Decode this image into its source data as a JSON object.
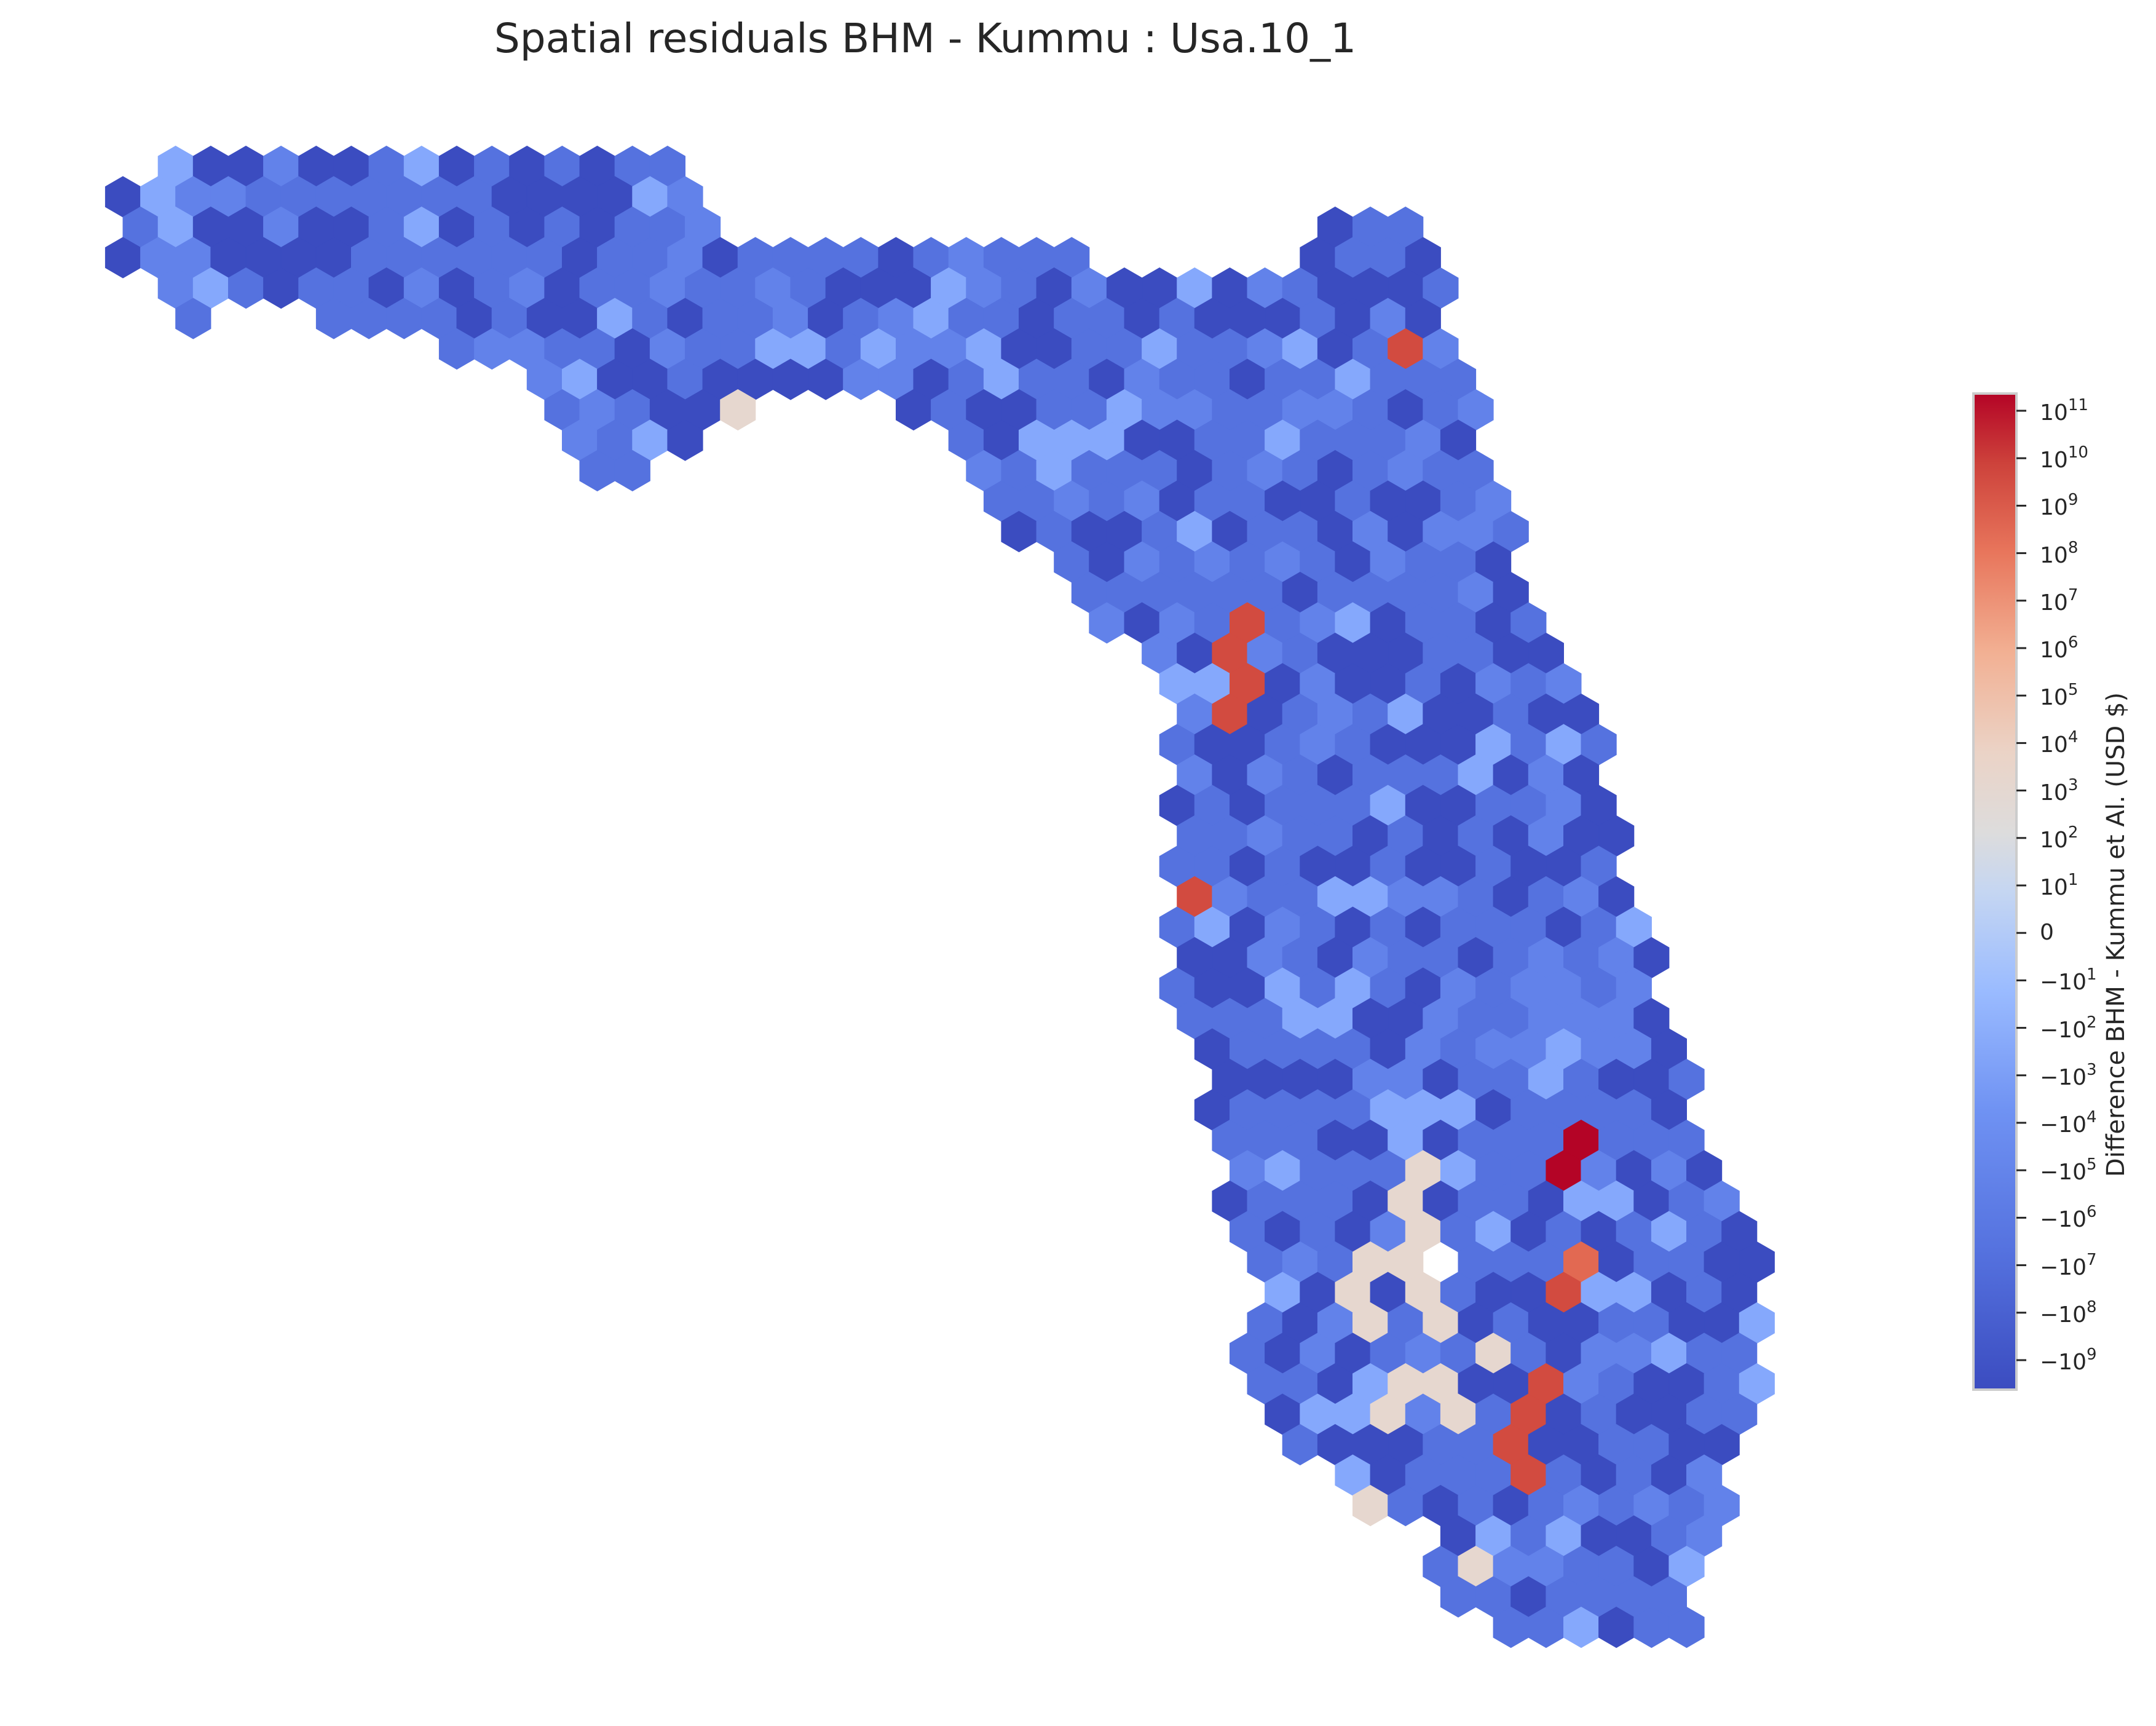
{
  "chart_data": {
    "type": "heatmap",
    "subtype": "hexbin-map",
    "title": "Spatial residuals BHM - Kummu : Usa.10_1",
    "colorbar": {
      "label": "Difference BHM - Kummu et Al. (USD $)",
      "scale": "symlog",
      "colormap": "coolwarm",
      "range": [
        -10000000000.0,
        100000000000.0
      ],
      "ticks": [
        {
          "base": "10",
          "exp": "11"
        },
        {
          "base": "10",
          "exp": "10"
        },
        {
          "base": "10",
          "exp": "9"
        },
        {
          "base": "10",
          "exp": "8"
        },
        {
          "base": "10",
          "exp": "7"
        },
        {
          "base": "10",
          "exp": "6"
        },
        {
          "base": "10",
          "exp": "5"
        },
        {
          "base": "10",
          "exp": "4"
        },
        {
          "base": "10",
          "exp": "3"
        },
        {
          "base": "10",
          "exp": "2"
        },
        {
          "base": "10",
          "exp": "1"
        },
        {
          "base": "0",
          "exp": ""
        },
        {
          "base": "−10",
          "exp": "1"
        },
        {
          "base": "−10",
          "exp": "2"
        },
        {
          "base": "−10",
          "exp": "3"
        },
        {
          "base": "−10",
          "exp": "4"
        },
        {
          "base": "−10",
          "exp": "5"
        },
        {
          "base": "−10",
          "exp": "6"
        },
        {
          "base": "−10",
          "exp": "7"
        },
        {
          "base": "−10",
          "exp": "8"
        },
        {
          "base": "−10",
          "exp": "9"
        }
      ]
    },
    "colors": {
      "deep_red": "#b40426",
      "red": "#d24b40",
      "orange_red": "#e26952",
      "beige": "#e6d7cf",
      "light_blue": "#85a8fc",
      "mid_blue": "#6282ea",
      "blue": "#5572df",
      "deep_blue": "#3b4cc0"
    }
  }
}
